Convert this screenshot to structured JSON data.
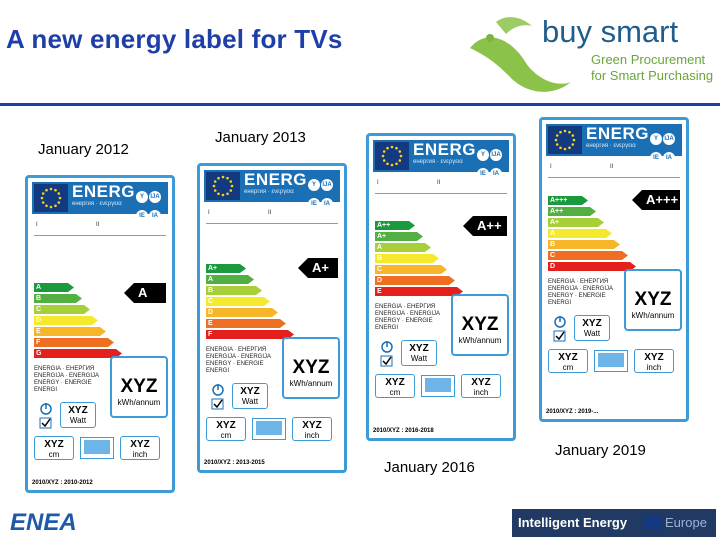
{
  "slide": {
    "title": "A new energy label for TVs"
  },
  "logo": {
    "name": "buy smart",
    "tagline1": "Green Procurement",
    "tagline2": "for Smart Purchasing"
  },
  "dates": [
    "January 2012",
    "January 2013",
    "January 2016",
    "January 2019"
  ],
  "label_common": {
    "energ": "ENERG",
    "energ_sub": "енергия · ενεργεια",
    "circles": [
      "Y",
      "IJA",
      "IE",
      "IA"
    ],
    "tick1": "I",
    "tick2": "II",
    "languages": "ENERGIA · ЕНЕРГИЯ\nENERGIJA · ENERGIJA\nENERGY · ENERGIE\nENERGI",
    "xyz": "XYZ",
    "kwh": "kWh/annum",
    "watt": "Watt",
    "cm": "cm",
    "inch": "inch"
  },
  "labels": [
    {
      "classes": [
        "A",
        "B",
        "C",
        "D",
        "E",
        "F",
        "G"
      ],
      "arrow_label": "A",
      "footer": "2010/XYZ : 2010-2012"
    },
    {
      "classes": [
        "A+",
        "A",
        "B",
        "C",
        "D",
        "E",
        "F"
      ],
      "arrow_label": "A+",
      "footer": "2010/XYZ : 2013-2015"
    },
    {
      "classes": [
        "A++",
        "A+",
        "A",
        "B",
        "C",
        "D",
        "E"
      ],
      "arrow_label": "A++",
      "footer": "2010/XYZ : 2016-2018"
    },
    {
      "classes": [
        "A+++",
        "A++",
        "A+",
        "A",
        "B",
        "C",
        "D"
      ],
      "arrow_label": "A+++",
      "footer": "2010/XYZ : 2019-..."
    }
  ],
  "bar_colors": [
    "#1a9a3c",
    "#52b043",
    "#a6cf3a",
    "#f5e92d",
    "#f7b52a",
    "#ee6f22",
    "#e3201b"
  ],
  "footer_logos": {
    "left": "ENEA",
    "right_main": "Intelligent Energy",
    "right_sub": "Europe"
  }
}
